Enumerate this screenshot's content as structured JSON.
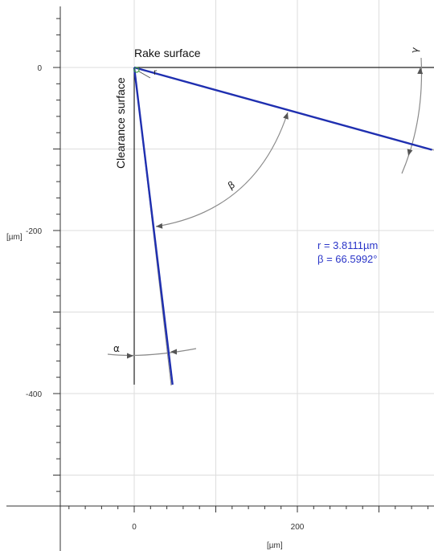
{
  "chart_data": {
    "type": "line",
    "title": "",
    "xlabel": "[µm]",
    "ylabel": "[µm]",
    "xlim": [
      -98,
      365
    ],
    "ylim": [
      -533,
      73
    ],
    "x_ticks": [
      0,
      200
    ],
    "y_ticks": [
      0,
      -200,
      -400
    ],
    "grid": true,
    "series": [
      {
        "name": "rake",
        "x": [
          0,
          365
        ],
        "y": [
          0,
          -101
        ]
      },
      {
        "name": "clearance",
        "x": [
          0,
          47
        ],
        "y": [
          0,
          -389
        ]
      }
    ],
    "reference_lines": {
      "rake_surface": {
        "x": [
          0,
          365
        ],
        "y": [
          0,
          0
        ]
      },
      "clearance_surface": {
        "x": [
          0,
          0
        ],
        "y": [
          0,
          -389
        ]
      }
    },
    "labels": {
      "rake_surface": "Rake surface",
      "clearance_surface": "Clearance surface",
      "alpha": "α",
      "beta": "β",
      "gamma": "γ",
      "r": "r"
    },
    "annotations": [
      "r = 3.8111µm",
      "β = 66.5992°"
    ],
    "colors": {
      "tool_lines": "#1f2fb0",
      "annotation_text": "#2a35c8",
      "angle_arcs": "#8a8a8a",
      "grid": "#dddddd",
      "axes": "#333333"
    }
  }
}
